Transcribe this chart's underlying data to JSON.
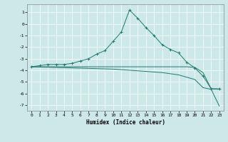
{
  "title": "",
  "xlabel": "Humidex (Indice chaleur)",
  "ylabel": "",
  "background_color": "#cce8e8",
  "grid_color": "#ffffff",
  "line_color": "#1a7a6e",
  "ylim": [
    -7.5,
    1.7
  ],
  "xlim": [
    -0.5,
    23.5
  ],
  "yticks": [
    1,
    0,
    -1,
    -2,
    -3,
    -4,
    -5,
    -6,
    -7
  ],
  "xticks": [
    0,
    1,
    2,
    3,
    4,
    5,
    6,
    7,
    8,
    9,
    10,
    11,
    12,
    13,
    14,
    15,
    16,
    17,
    18,
    19,
    20,
    21,
    22,
    23
  ],
  "lines": [
    {
      "x": [
        0,
        1,
        2,
        3,
        4,
        5,
        6,
        7,
        8,
        9,
        10,
        11,
        12,
        13,
        14,
        15,
        16,
        17,
        18,
        19,
        20,
        21,
        22,
        23
      ],
      "y": [
        -3.7,
        -3.6,
        -3.5,
        -3.5,
        -3.5,
        -3.4,
        -3.2,
        -3.0,
        -2.6,
        -2.3,
        -1.5,
        -0.7,
        1.2,
        0.5,
        -0.3,
        -1.0,
        -1.8,
        -2.2,
        -2.5,
        -3.3,
        -3.8,
        -4.5,
        -5.6,
        -5.6
      ],
      "marker": "+"
    },
    {
      "x": [
        0,
        1,
        2,
        3,
        4,
        5,
        6,
        7,
        8,
        9,
        10,
        11,
        12,
        13,
        14,
        15,
        16,
        17,
        18,
        19,
        20,
        21,
        22,
        23
      ],
      "y": [
        -3.7,
        -3.72,
        -3.74,
        -3.76,
        -3.78,
        -3.8,
        -3.82,
        -3.84,
        -3.86,
        -3.88,
        -3.9,
        -3.95,
        -4.0,
        -4.05,
        -4.1,
        -4.15,
        -4.2,
        -4.3,
        -4.4,
        -4.6,
        -4.8,
        -5.5,
        -5.65,
        -7.1
      ],
      "marker": null
    },
    {
      "x": [
        0,
        1,
        2,
        3,
        4,
        5,
        6,
        7,
        8,
        9,
        10,
        11,
        12,
        13,
        14,
        15,
        16,
        17,
        18,
        19,
        20,
        21,
        22,
        23
      ],
      "y": [
        -3.7,
        -3.7,
        -3.7,
        -3.7,
        -3.7,
        -3.7,
        -3.7,
        -3.7,
        -3.7,
        -3.7,
        -3.7,
        -3.7,
        -3.7,
        -3.7,
        -3.7,
        -3.7,
        -3.7,
        -3.7,
        -3.7,
        -3.7,
        -3.75,
        -4.2,
        -5.6,
        -5.65
      ],
      "marker": null
    }
  ],
  "figsize": [
    3.2,
    2.0
  ],
  "dpi": 100
}
